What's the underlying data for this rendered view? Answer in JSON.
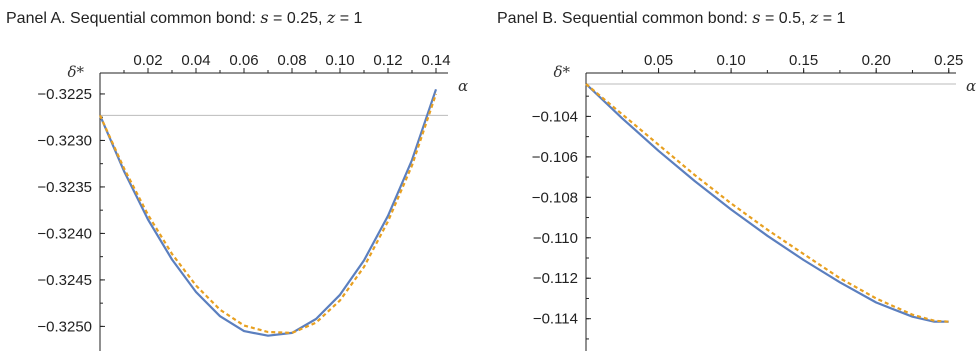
{
  "panels": [
    {
      "title_prefix": "Panel A. Sequential common bond: ",
      "title_s": "s",
      "title_s_val": " = 0.25, ",
      "title_z": "z",
      "title_z_val": " = 1"
    },
    {
      "title_prefix": "Panel B. Sequential common bond: ",
      "title_s": "s",
      "title_s_val": " = 0.5, ",
      "title_z": "z",
      "title_z_val": " = 1"
    }
  ],
  "colors": {
    "solid": "#5b7fbf",
    "dashed": "#e8a020",
    "ref": "#bbbbbb",
    "axis": "#222222"
  },
  "chart_data": [
    {
      "type": "line",
      "xlabel": "α",
      "ylabel": "δ*",
      "xlim": [
        0,
        0.145
      ],
      "ylim": [
        -0.3252,
        -0.32235
      ],
      "xticks": [
        0.02,
        0.04,
        0.06,
        0.08,
        0.1,
        0.12,
        0.14
      ],
      "xtick_labels": [
        "0.02",
        "0.04",
        "0.06",
        "0.08",
        "0.10",
        "0.12",
        "0.14"
      ],
      "yticks": [
        -0.3225,
        -0.323,
        -0.3235,
        -0.324,
        -0.3245,
        -0.325
      ],
      "ytick_labels": [
        "−0.3225",
        "−0.3230",
        "−0.3235",
        "−0.3240",
        "−0.3245",
        "−0.3250"
      ],
      "reference_y": -0.32273,
      "series": [
        {
          "style": "solid",
          "x": [
            0,
            0.01,
            0.02,
            0.03,
            0.04,
            0.05,
            0.06,
            0.07,
            0.08,
            0.09,
            0.1,
            0.11,
            0.12,
            0.13,
            0.14
          ],
          "y": [
            -0.32273,
            -0.32333,
            -0.32385,
            -0.32428,
            -0.32463,
            -0.32489,
            -0.32505,
            -0.3251,
            -0.32507,
            -0.32492,
            -0.32466,
            -0.32429,
            -0.32381,
            -0.32321,
            -0.32245
          ]
        },
        {
          "style": "dashed",
          "x": [
            0,
            0.01,
            0.02,
            0.03,
            0.04,
            0.05,
            0.06,
            0.07,
            0.08,
            0.09,
            0.1,
            0.11,
            0.12,
            0.13,
            0.14
          ],
          "y": [
            -0.32273,
            -0.3233,
            -0.3238,
            -0.32422,
            -0.32456,
            -0.32482,
            -0.32499,
            -0.32506,
            -0.32507,
            -0.32496,
            -0.32472,
            -0.32436,
            -0.32387,
            -0.32327,
            -0.3225
          ]
        }
      ]
    },
    {
      "type": "line",
      "xlabel": "α",
      "ylabel": "δ*",
      "xlim": [
        0,
        0.255
      ],
      "ylim": [
        -0.1153,
        -0.1022
      ],
      "xticks": [
        0.05,
        0.1,
        0.15,
        0.2,
        0.25
      ],
      "xtick_labels": [
        "0.05",
        "0.10",
        "0.15",
        "0.20",
        "0.25"
      ],
      "yticks": [
        -0.104,
        -0.106,
        -0.108,
        -0.11,
        -0.112,
        -0.114
      ],
      "ytick_labels": [
        "−0.104",
        "−0.106",
        "−0.108",
        "−0.110",
        "−0.112",
        "−0.114"
      ],
      "reference_y": -0.1024,
      "series": [
        {
          "style": "solid",
          "x": [
            0,
            0.025,
            0.05,
            0.075,
            0.1,
            0.125,
            0.15,
            0.175,
            0.2,
            0.225,
            0.24,
            0.25
          ],
          "y": [
            -0.1024,
            -0.1041,
            -0.1057,
            -0.1072,
            -0.1086,
            -0.1099,
            -0.1111,
            -0.1122,
            -0.1132,
            -0.1139,
            -0.11415,
            -0.11415
          ]
        },
        {
          "style": "dashed",
          "x": [
            0,
            0.025,
            0.05,
            0.075,
            0.1,
            0.125,
            0.15,
            0.175,
            0.2,
            0.225,
            0.24,
            0.25
          ],
          "y": [
            -0.1024,
            -0.1039,
            -0.1054,
            -0.1069,
            -0.1083,
            -0.1096,
            -0.1108,
            -0.112,
            -0.113,
            -0.1138,
            -0.1141,
            -0.11415
          ]
        }
      ]
    }
  ]
}
